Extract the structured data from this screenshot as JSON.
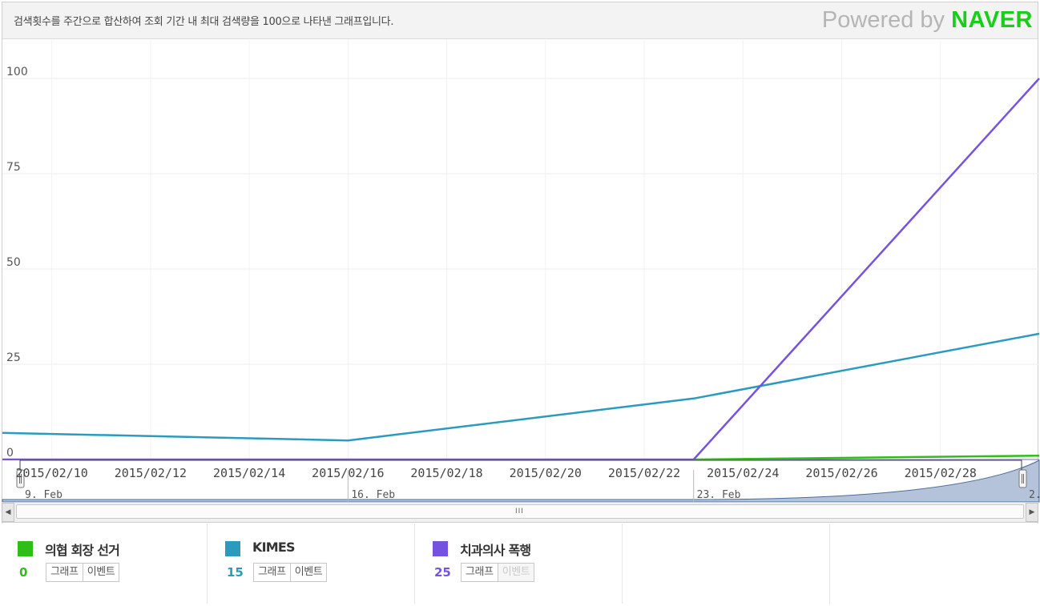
{
  "header": {
    "description": "검색횟수를 주간으로 합산하여 조회 기간 내 최대 검색량을 100으로 나타낸 그래프입니다.",
    "powered_prefix": "Powered by",
    "powered_brand": "NAVER"
  },
  "colors": {
    "series_green": "#2fbe17",
    "series_teal": "#2b9bbd",
    "series_purple": "#7553e0",
    "navigator_fill": "#b4c3d9",
    "navigator_line": "#4e6b98"
  },
  "chart_data": {
    "type": "line",
    "ylim": [
      0,
      100
    ],
    "yticks": [
      0,
      25,
      50,
      75,
      100
    ],
    "xlim": [
      "2015-02-09",
      "2015-03-02"
    ],
    "x_tick_labels": [
      "2015/02/10",
      "2015/02/12",
      "2015/02/14",
      "2015/02/16",
      "2015/02/18",
      "2015/02/20",
      "2015/02/22",
      "2015/02/24",
      "2015/02/26",
      "2015/02/28"
    ],
    "x_tick_dates": [
      "2015-02-10",
      "2015-02-12",
      "2015-02-14",
      "2015-02-16",
      "2015-02-18",
      "2015-02-20",
      "2015-02-22",
      "2015-02-24",
      "2015-02-26",
      "2015-02-28"
    ],
    "series": [
      {
        "name": "의협 회장 선거",
        "color": "#2fbe17",
        "points": [
          [
            "2015-02-23",
            0
          ],
          [
            "2015-03-02",
            1
          ]
        ]
      },
      {
        "name": "KIMES",
        "color": "#2b9bbd",
        "points": [
          [
            "2015-02-09",
            7
          ],
          [
            "2015-02-16",
            5
          ],
          [
            "2015-02-23",
            16
          ],
          [
            "2015-03-02",
            33
          ]
        ]
      },
      {
        "name": "치과의사 폭행",
        "color": "#7553e0",
        "points": [
          [
            "2015-02-09",
            0
          ],
          [
            "2015-02-16",
            0
          ],
          [
            "2015-02-23",
            0
          ],
          [
            "2015-03-02",
            100
          ]
        ]
      }
    ],
    "navigator": {
      "week_labels": [
        "9. Feb",
        "16. Feb",
        "23. Feb",
        "2."
      ],
      "week_dates": [
        "2015-02-09",
        "2015-02-16",
        "2015-02-23",
        "2015-03-02"
      ]
    },
    "grid": true
  },
  "scrollbar": {
    "left_arrow": "◀",
    "right_arrow": "▶",
    "grip": "III"
  },
  "legend": {
    "items": [
      {
        "term": "의협 회장 선거",
        "value": "0",
        "color": "#2fbe17",
        "graph_label": "그래프",
        "event_label": "이벤트",
        "event_disabled": false
      },
      {
        "term": "KIMES",
        "value": "15",
        "color": "#2b9bbd",
        "graph_label": "그래프",
        "event_label": "이벤트",
        "event_disabled": false
      },
      {
        "term": "치과의사 폭행",
        "value": "25",
        "color": "#7553e0",
        "graph_label": "그래프",
        "event_label": "이벤트",
        "event_disabled": true
      }
    ]
  }
}
